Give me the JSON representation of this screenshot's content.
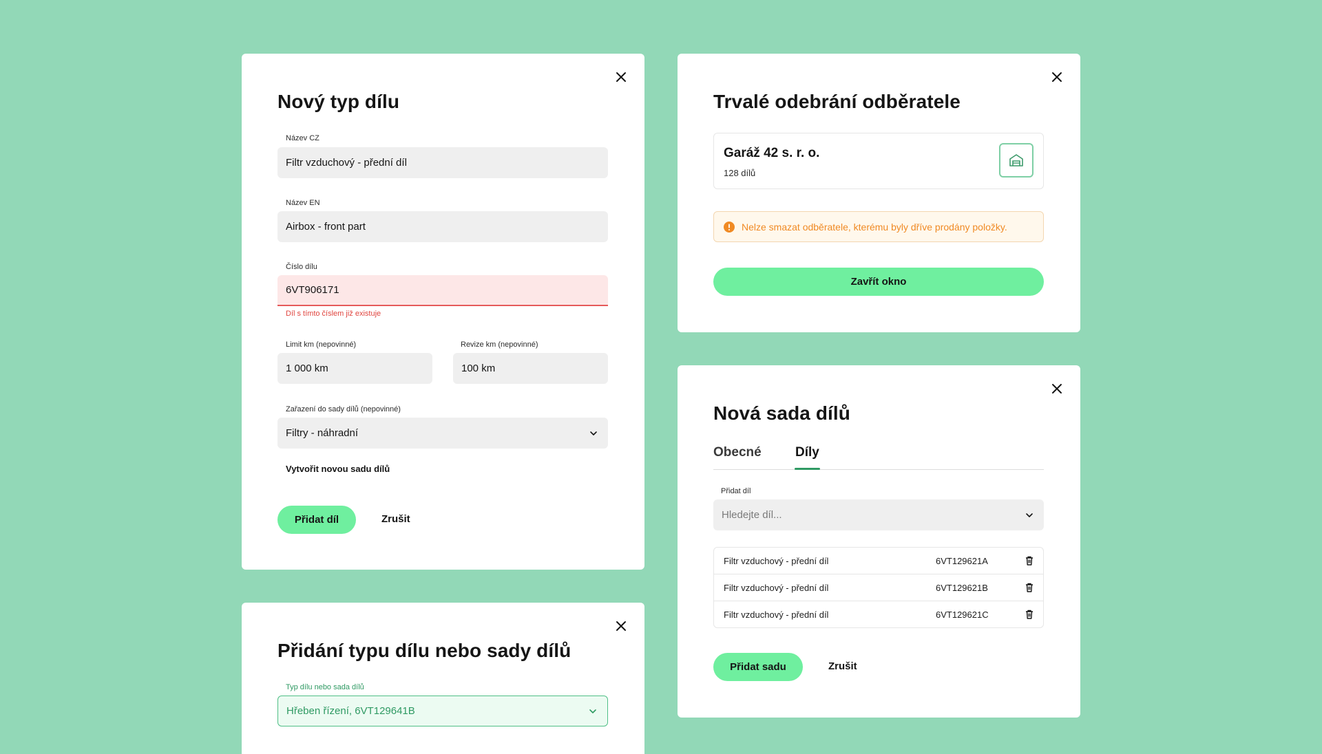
{
  "new_part_type": {
    "title": "Nový typ dílu",
    "name_cz_label": "Název CZ",
    "name_cz_value": "Filtr vzduchový - přední díl",
    "name_en_label": "Název EN",
    "name_en_value": "Airbox - front part",
    "part_number_label": "Číslo dílu",
    "part_number_value": "6VT906171",
    "part_number_error": "Díl s tímto číslem již existuje",
    "limit_km_label": "Limit km (nepovinné)",
    "limit_km_value": "1 000 km",
    "revision_km_label": "Revize km (nepovinné)",
    "revision_km_value": "100 km",
    "set_assign_label": "Zařazení do sady dílů (nepovinné)",
    "set_assign_value": "Filtry - náhradní",
    "create_set_link": "Vytvořit novou sadu dílů",
    "add_button": "Přidat díl",
    "cancel_button": "Zrušit"
  },
  "add_type_or_set": {
    "title": "Přidání typu dílu nebo sady dílů",
    "field_label": "Typ dílu nebo sada dílů",
    "field_value": "Hřeben řízení, 6VT129641B"
  },
  "remove_customer": {
    "title": "Trvalé odebrání odběratele",
    "customer_name": "Garáž 42 s. r. o.",
    "customer_parts": "128 dílů",
    "warning": "Nelze smazat odběratele, kterému byly dříve prodány položky.",
    "close_window_button": "Zavřít okno"
  },
  "new_set": {
    "title": "Nová sada dílů",
    "tabs": [
      {
        "label": "Obecné",
        "active": false
      },
      {
        "label": "Díly",
        "active": true
      }
    ],
    "add_part_label": "Přidat díl",
    "search_placeholder": "Hledejte díl...",
    "parts": [
      {
        "name": "Filtr vzduchový - přední díl",
        "code": "6VT129621A"
      },
      {
        "name": "Filtr vzduchový - přední díl",
        "code": "6VT129621B"
      },
      {
        "name": "Filtr vzduchový - přední díl",
        "code": "6VT129621C"
      }
    ],
    "add_set_button": "Přidat sadu",
    "cancel_button": "Zrušit"
  },
  "colors": {
    "background": "#92d8b7",
    "accent": "#6fef9f",
    "error": "#e0453f",
    "warning": "#f08a24",
    "success_text": "#2f9a63"
  }
}
